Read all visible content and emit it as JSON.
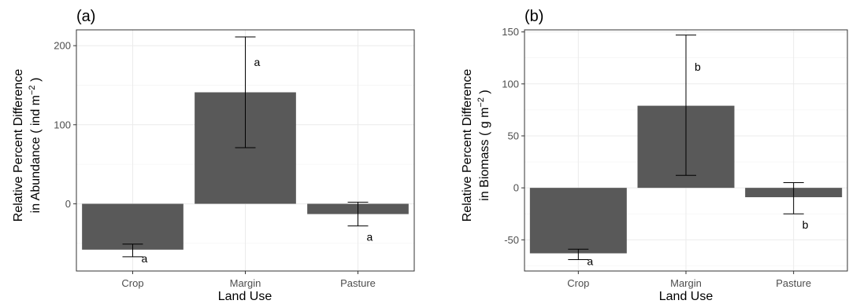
{
  "chart_data": [
    {
      "type": "bar",
      "panel_label": "(a)",
      "title": "",
      "xlabel": "Land Use",
      "ylabel_line1": "Relative Percent Difference",
      "ylabel_line2_prefix": "in Abundance ( ind  m",
      "ylabel_sup": "−2",
      "ylabel_line2_suffix": " )",
      "categories": [
        "Crop",
        "Margin",
        "Pasture"
      ],
      "values": [
        -58,
        141,
        -13
      ],
      "error_low": [
        -67,
        71,
        -28
      ],
      "error_high": [
        -51,
        211,
        2
      ],
      "significance": [
        "a",
        "a",
        "a"
      ],
      "ylim": [
        -85,
        220
      ],
      "yticks": [
        0,
        100,
        200
      ],
      "grid": true,
      "bar_color": "#595959"
    },
    {
      "type": "bar",
      "panel_label": "(b)",
      "title": "",
      "xlabel": "Land Use",
      "ylabel_line1": "Relative Percent Difference",
      "ylabel_line2_prefix": "in Biomass ( g m",
      "ylabel_sup": "−2",
      "ylabel_line2_suffix": " )",
      "categories": [
        "Crop",
        "Margin",
        "Pasture"
      ],
      "values": [
        -63,
        79,
        -9
      ],
      "error_low": [
        -69,
        12,
        -25
      ],
      "error_high": [
        -59,
        147,
        5
      ],
      "significance": [
        "a",
        "b",
        "b"
      ],
      "ylim": [
        -80,
        152
      ],
      "yticks": [
        -50,
        0,
        50,
        100,
        150
      ],
      "grid": true,
      "bar_color": "#595959"
    }
  ]
}
